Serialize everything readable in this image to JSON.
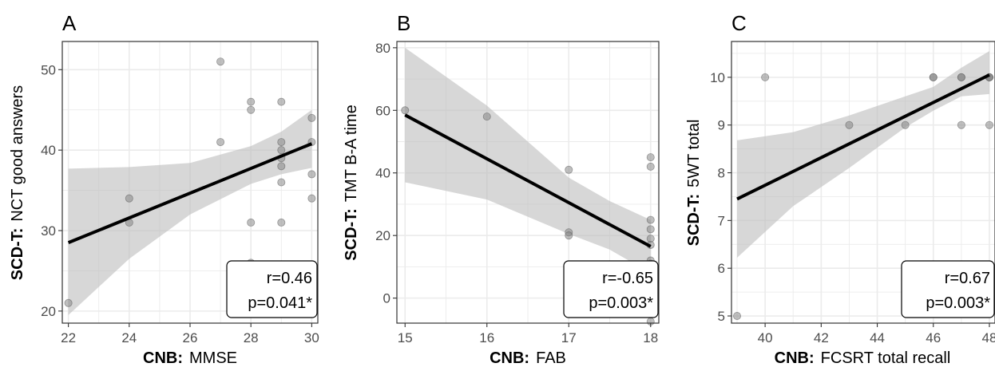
{
  "chart_data": [
    {
      "type": "scatter",
      "panel_label": "A",
      "xlabel_prefix": "CNB:",
      "xlabel": "MMSE",
      "ylabel_prefix": "SCD-T:",
      "ylabel": "NCT good answers",
      "xlim": [
        21.8,
        30.2
      ],
      "ylim": [
        18.5,
        53.5
      ],
      "xticks": [
        22,
        24,
        26,
        28,
        30
      ],
      "yticks": [
        20,
        30,
        40,
        50
      ],
      "points": [
        {
          "x": 22,
          "y": 21
        },
        {
          "x": 24,
          "y": 34
        },
        {
          "x": 24,
          "y": 31
        },
        {
          "x": 27,
          "y": 51
        },
        {
          "x": 27,
          "y": 41
        },
        {
          "x": 28,
          "y": 46
        },
        {
          "x": 28,
          "y": 45
        },
        {
          "x": 28,
          "y": 31
        },
        {
          "x": 28,
          "y": 26
        },
        {
          "x": 29,
          "y": 46
        },
        {
          "x": 29,
          "y": 41
        },
        {
          "x": 29,
          "y": 40
        },
        {
          "x": 29,
          "y": 39
        },
        {
          "x": 29,
          "y": 38
        },
        {
          "x": 29,
          "y": 36
        },
        {
          "x": 29,
          "y": 31
        },
        {
          "x": 30,
          "y": 44
        },
        {
          "x": 30,
          "y": 41
        },
        {
          "x": 30,
          "y": 37
        },
        {
          "x": 30,
          "y": 34
        }
      ],
      "fit_line": [
        {
          "x": 22,
          "y": 28.5
        },
        {
          "x": 30,
          "y": 40.8
        }
      ],
      "ci_band": {
        "x": [
          22,
          24,
          26,
          28,
          29,
          30
        ],
        "lower": [
          19.5,
          26.5,
          32.0,
          35.8,
          37.0,
          37.8
        ],
        "upper": [
          37.7,
          37.9,
          38.4,
          40.5,
          42.3,
          45.0
        ]
      },
      "annotation": {
        "r": "r=0.46",
        "p": "p=0.041*"
      },
      "grid": true
    },
    {
      "type": "scatter",
      "panel_label": "B",
      "xlabel_prefix": "CNB:",
      "xlabel": "FAB",
      "ylabel_prefix": "SCD-T:",
      "ylabel": "TMT B-A time",
      "xlim": [
        14.9,
        18.1
      ],
      "ylim": [
        -8,
        82
      ],
      "xticks": [
        15,
        16,
        17,
        18
      ],
      "yticks": [
        0,
        20,
        40,
        60,
        80
      ],
      "points": [
        {
          "x": 15,
          "y": 60
        },
        {
          "x": 16,
          "y": 58
        },
        {
          "x": 17,
          "y": 41
        },
        {
          "x": 17,
          "y": 21
        },
        {
          "x": 17,
          "y": 20
        },
        {
          "x": 18,
          "y": 45
        },
        {
          "x": 18,
          "y": 42
        },
        {
          "x": 18,
          "y": 25
        },
        {
          "x": 18,
          "y": 22
        },
        {
          "x": 18,
          "y": 19
        },
        {
          "x": 18,
          "y": 17
        },
        {
          "x": 18,
          "y": 12
        },
        {
          "x": 18,
          "y": 11
        },
        {
          "x": 18,
          "y": 10
        },
        {
          "x": 18,
          "y": 0
        },
        {
          "x": 18,
          "y": -8
        }
      ],
      "fit_line": [
        {
          "x": 15,
          "y": 58.5
        },
        {
          "x": 18,
          "y": 16.5
        }
      ],
      "ci_band": {
        "x": [
          15,
          16,
          17,
          17.5,
          18
        ],
        "lower": [
          37,
          31.5,
          20.5,
          15.5,
          8
        ],
        "upper": [
          80,
          61.5,
          38.5,
          31,
          25
        ]
      },
      "annotation": {
        "r": "r=-0.65",
        "p": "p=0.003*"
      },
      "grid": true
    },
    {
      "type": "scatter",
      "panel_label": "C",
      "xlabel_prefix": "CNB:",
      "xlabel": "FCSRT total recall",
      "ylabel_prefix": "SCD-T:",
      "ylabel": "5WT total",
      "xlim": [
        38.8,
        48.2
      ],
      "ylim": [
        4.85,
        10.75
      ],
      "xticks": [
        40,
        42,
        44,
        46,
        48
      ],
      "yticks": [
        5,
        6,
        7,
        8,
        9,
        10
      ],
      "points": [
        {
          "x": 39,
          "y": 5
        },
        {
          "x": 40,
          "y": 10
        },
        {
          "x": 43,
          "y": 9
        },
        {
          "x": 45,
          "y": 9
        },
        {
          "x": 46,
          "y": 10
        },
        {
          "x": 46,
          "y": 10
        },
        {
          "x": 47,
          "y": 10
        },
        {
          "x": 47,
          "y": 10
        },
        {
          "x": 47,
          "y": 9
        },
        {
          "x": 48,
          "y": 10
        },
        {
          "x": 48,
          "y": 10
        },
        {
          "x": 48,
          "y": 10
        },
        {
          "x": 48,
          "y": 9
        }
      ],
      "fit_line": [
        {
          "x": 39,
          "y": 7.45
        },
        {
          "x": 48,
          "y": 10.05
        }
      ],
      "ci_band": {
        "x": [
          39,
          41,
          43,
          45,
          46,
          47,
          48
        ],
        "lower": [
          6.22,
          7.3,
          8.1,
          8.95,
          9.3,
          9.6,
          9.65
        ],
        "upper": [
          8.68,
          8.85,
          9.2,
          9.6,
          9.8,
          10.2,
          10.55
        ]
      },
      "annotation": {
        "r": "r=0.67",
        "p": "p=0.003*"
      },
      "grid": true
    }
  ],
  "colors": {
    "panel_border": "#333333",
    "grid": "#ebebeb",
    "ci_band": "#bdbdbd",
    "fit_line": "#000000",
    "point": "#7f7f7f",
    "tick_label": "#4d4d4d"
  }
}
